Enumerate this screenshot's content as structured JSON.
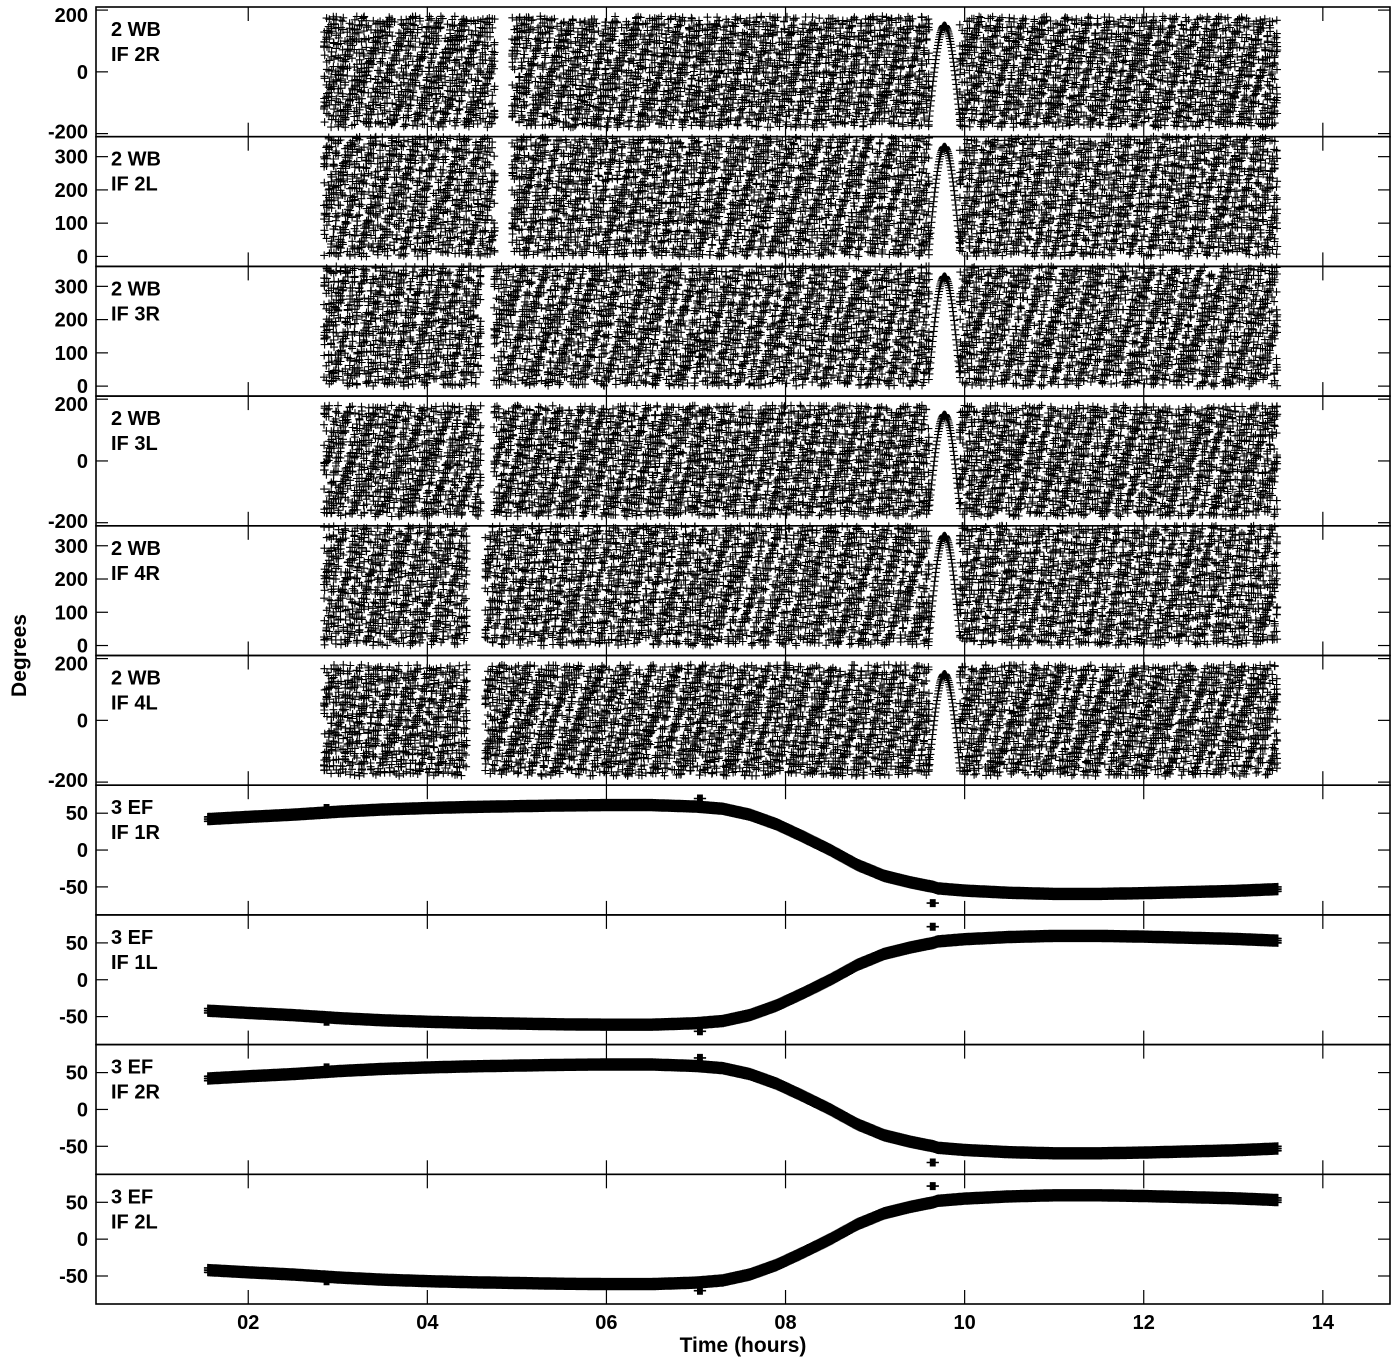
{
  "chart_data": {
    "type": "scatter",
    "marker": "plus",
    "marker_color": "#000000",
    "xlabel": "Time (hours)",
    "ylabel": "Degrees",
    "xlim": [
      0.3,
      14.75
    ],
    "x_ticks": [
      2,
      4,
      6,
      8,
      10,
      12,
      14
    ],
    "x_tick_labels": [
      "02",
      "04",
      "06",
      "08",
      "10",
      "12",
      "14"
    ],
    "panels": [
      {
        "label_line1": "2 WB",
        "label_line2": "IF 2R",
        "ylim": [
          -210,
          210
        ],
        "y_ticks": [
          -200,
          0,
          200
        ],
        "y_tick_labels": [
          "-200",
          "0",
          "200"
        ],
        "kind": "wrapped",
        "segments": [
          [
            2.85,
            4.75
          ],
          [
            4.95,
            7.05
          ],
          [
            7.05,
            9.6
          ],
          [
            9.6,
            9.95
          ],
          [
            9.95,
            13.5
          ]
        ]
      },
      {
        "label_line1": "2 WB",
        "label_line2": "IF 2L",
        "ylim": [
          -30,
          360
        ],
        "y_ticks": [
          0,
          100,
          200,
          300
        ],
        "y_tick_labels": [
          "0",
          "100",
          "200",
          "300"
        ],
        "kind": "wrapped",
        "segments": [
          [
            2.85,
            4.75
          ],
          [
            4.95,
            7.05
          ],
          [
            7.05,
            9.6
          ],
          [
            9.6,
            9.95
          ],
          [
            9.95,
            13.5
          ]
        ]
      },
      {
        "label_line1": "2 WB",
        "label_line2": "IF 3R",
        "ylim": [
          -30,
          360
        ],
        "y_ticks": [
          0,
          100,
          200,
          300
        ],
        "y_tick_labels": [
          "0",
          "100",
          "200",
          "300"
        ],
        "kind": "wrapped",
        "segments": [
          [
            2.85,
            4.6
          ],
          [
            4.75,
            7.05
          ],
          [
            7.05,
            9.6
          ],
          [
            9.6,
            9.95
          ],
          [
            9.95,
            13.5
          ]
        ]
      },
      {
        "label_line1": "2 WB",
        "label_line2": "IF 3L",
        "ylim": [
          -210,
          210
        ],
        "y_ticks": [
          -200,
          0,
          200
        ],
        "y_tick_labels": [
          "-200",
          "0",
          "200"
        ],
        "kind": "wrapped",
        "segments": [
          [
            2.85,
            4.6
          ],
          [
            4.75,
            7.05
          ],
          [
            7.05,
            9.6
          ],
          [
            9.6,
            9.95
          ],
          [
            9.95,
            13.5
          ]
        ]
      },
      {
        "label_line1": "2 WB",
        "label_line2": "IF 4R",
        "ylim": [
          -30,
          360
        ],
        "y_ticks": [
          0,
          100,
          200,
          300
        ],
        "y_tick_labels": [
          "0",
          "100",
          "200",
          "300"
        ],
        "kind": "wrapped",
        "segments": [
          [
            2.85,
            4.45
          ],
          [
            4.65,
            7.05
          ],
          [
            7.05,
            9.6
          ],
          [
            9.6,
            9.95
          ],
          [
            9.95,
            13.5
          ]
        ]
      },
      {
        "label_line1": "2 WB",
        "label_line2": "IF 4L",
        "ylim": [
          -210,
          210
        ],
        "y_ticks": [
          -200,
          0,
          200
        ],
        "y_tick_labels": [
          "-200",
          "0",
          "200"
        ],
        "kind": "wrapped",
        "segments": [
          [
            2.85,
            4.45
          ],
          [
            4.65,
            7.05
          ],
          [
            7.05,
            9.6
          ],
          [
            9.6,
            9.95
          ],
          [
            9.95,
            13.5
          ]
        ]
      },
      {
        "label_line1": "3 EF",
        "label_line2": "IF 1R",
        "ylim": [
          -88,
          88
        ],
        "y_ticks": [
          -50,
          0,
          50
        ],
        "y_tick_labels": [
          "-50",
          "0",
          "50"
        ],
        "kind": "smooth",
        "sign": 1,
        "curve": [
          [
            1.55,
            42
          ],
          [
            2.0,
            45
          ],
          [
            2.5,
            48
          ],
          [
            2.88,
            51
          ],
          [
            3.0,
            52
          ],
          [
            3.5,
            55
          ],
          [
            4.0,
            57
          ],
          [
            4.5,
            58.5
          ],
          [
            5.0,
            59.5
          ],
          [
            5.5,
            60.5
          ],
          [
            6.0,
            61
          ],
          [
            6.5,
            61
          ],
          [
            7.0,
            59
          ],
          [
            7.3,
            56
          ],
          [
            7.6,
            48
          ],
          [
            7.9,
            35
          ],
          [
            8.2,
            18
          ],
          [
            8.5,
            0
          ],
          [
            8.8,
            -20
          ],
          [
            9.1,
            -35
          ],
          [
            9.4,
            -44
          ],
          [
            9.65,
            -50
          ],
          [
            9.7,
            -52
          ],
          [
            10.0,
            -55
          ],
          [
            10.5,
            -58
          ],
          [
            11.0,
            -59.5
          ],
          [
            11.5,
            -59.5
          ],
          [
            12.0,
            -58.5
          ],
          [
            12.5,
            -57
          ],
          [
            13.0,
            -55.5
          ],
          [
            13.5,
            -53
          ]
        ],
        "outliers": [
          [
            2.88,
            57
          ],
          [
            7.05,
            70
          ],
          [
            9.65,
            -72
          ]
        ]
      },
      {
        "label_line1": "3 EF",
        "label_line2": "IF 1L",
        "ylim": [
          -88,
          88
        ],
        "y_ticks": [
          -50,
          0,
          50
        ],
        "y_tick_labels": [
          "-50",
          "0",
          "50"
        ],
        "kind": "smooth",
        "sign": -1,
        "curve": [
          [
            1.55,
            42
          ],
          [
            2.0,
            45
          ],
          [
            2.5,
            48
          ],
          [
            2.88,
            51
          ],
          [
            3.0,
            52
          ],
          [
            3.5,
            55
          ],
          [
            4.0,
            57
          ],
          [
            4.5,
            58.5
          ],
          [
            5.0,
            59.5
          ],
          [
            5.5,
            60.5
          ],
          [
            6.0,
            61
          ],
          [
            6.5,
            61
          ],
          [
            7.0,
            59
          ],
          [
            7.3,
            56
          ],
          [
            7.6,
            48
          ],
          [
            7.9,
            35
          ],
          [
            8.2,
            18
          ],
          [
            8.5,
            0
          ],
          [
            8.8,
            -20
          ],
          [
            9.1,
            -35
          ],
          [
            9.4,
            -44
          ],
          [
            9.65,
            -50
          ],
          [
            9.7,
            -52
          ],
          [
            10.0,
            -55
          ],
          [
            10.5,
            -58
          ],
          [
            11.0,
            -59.5
          ],
          [
            11.5,
            -59.5
          ],
          [
            12.0,
            -58.5
          ],
          [
            12.5,
            -57
          ],
          [
            13.0,
            -55.5
          ],
          [
            13.5,
            -53
          ]
        ],
        "outliers": [
          [
            2.88,
            57
          ],
          [
            7.05,
            70
          ],
          [
            9.65,
            -72
          ]
        ]
      },
      {
        "label_line1": "3 EF",
        "label_line2": "IF 2R",
        "ylim": [
          -88,
          88
        ],
        "y_ticks": [
          -50,
          0,
          50
        ],
        "y_tick_labels": [
          "-50",
          "0",
          "50"
        ],
        "kind": "smooth",
        "sign": 1,
        "curve": [
          [
            1.55,
            42
          ],
          [
            2.0,
            45
          ],
          [
            2.5,
            48
          ],
          [
            2.88,
            51
          ],
          [
            3.0,
            52
          ],
          [
            3.5,
            55
          ],
          [
            4.0,
            57
          ],
          [
            4.5,
            58.5
          ],
          [
            5.0,
            59.5
          ],
          [
            5.5,
            60.5
          ],
          [
            6.0,
            61
          ],
          [
            6.5,
            61
          ],
          [
            7.0,
            59
          ],
          [
            7.3,
            56
          ],
          [
            7.6,
            48
          ],
          [
            7.9,
            35
          ],
          [
            8.2,
            18
          ],
          [
            8.5,
            0
          ],
          [
            8.8,
            -20
          ],
          [
            9.1,
            -35
          ],
          [
            9.4,
            -44
          ],
          [
            9.65,
            -50
          ],
          [
            9.7,
            -52
          ],
          [
            10.0,
            -55
          ],
          [
            10.5,
            -58
          ],
          [
            11.0,
            -59.5
          ],
          [
            11.5,
            -59.5
          ],
          [
            12.0,
            -58.5
          ],
          [
            12.5,
            -57
          ],
          [
            13.0,
            -55.5
          ],
          [
            13.5,
            -53
          ]
        ],
        "outliers": [
          [
            2.88,
            57
          ],
          [
            7.05,
            70
          ],
          [
            9.65,
            -72
          ]
        ]
      },
      {
        "label_line1": "3 EF",
        "label_line2": "IF 2L",
        "ylim": [
          -88,
          88
        ],
        "y_ticks": [
          -50,
          0,
          50
        ],
        "y_tick_labels": [
          "-50",
          "0",
          "50"
        ],
        "kind": "smooth",
        "sign": -1,
        "curve": [
          [
            1.55,
            42
          ],
          [
            2.0,
            45
          ],
          [
            2.5,
            48
          ],
          [
            2.88,
            51
          ],
          [
            3.0,
            52
          ],
          [
            3.5,
            55
          ],
          [
            4.0,
            57
          ],
          [
            4.5,
            58.5
          ],
          [
            5.0,
            59.5
          ],
          [
            5.5,
            60.5
          ],
          [
            6.0,
            61
          ],
          [
            6.5,
            61
          ],
          [
            7.0,
            59
          ],
          [
            7.3,
            56
          ],
          [
            7.6,
            48
          ],
          [
            7.9,
            35
          ],
          [
            8.2,
            18
          ],
          [
            8.5,
            0
          ],
          [
            8.8,
            -20
          ],
          [
            9.1,
            -35
          ],
          [
            9.4,
            -44
          ],
          [
            9.65,
            -50
          ],
          [
            9.7,
            -52
          ],
          [
            10.0,
            -55
          ],
          [
            10.5,
            -58
          ],
          [
            11.0,
            -59.5
          ],
          [
            11.5,
            -59.5
          ],
          [
            12.0,
            -58.5
          ],
          [
            12.5,
            -57
          ],
          [
            13.0,
            -55.5
          ],
          [
            13.5,
            -53
          ]
        ],
        "outliers": [
          [
            2.88,
            57
          ],
          [
            7.05,
            70
          ],
          [
            9.65,
            -72
          ]
        ]
      }
    ]
  }
}
